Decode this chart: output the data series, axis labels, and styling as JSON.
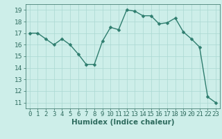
{
  "x": [
    0,
    1,
    2,
    3,
    4,
    5,
    6,
    7,
    8,
    9,
    10,
    11,
    12,
    13,
    14,
    15,
    16,
    17,
    18,
    19,
    20,
    21,
    22,
    23
  ],
  "y": [
    17.0,
    17.0,
    16.5,
    16.0,
    16.5,
    16.0,
    15.2,
    14.3,
    14.3,
    16.3,
    17.5,
    17.3,
    19.0,
    18.9,
    18.5,
    18.5,
    17.8,
    17.9,
    18.3,
    17.1,
    16.5,
    15.8,
    11.5,
    11.0
  ],
  "line_color": "#2e7d6e",
  "marker_color": "#2e7d6e",
  "bg_color": "#cdeee9",
  "grid_color": "#aad8d2",
  "xlabel": "Humidex (Indice chaleur)",
  "ylabel": "",
  "xlim": [
    -0.5,
    23.5
  ],
  "ylim": [
    10.5,
    19.5
  ],
  "yticks": [
    11,
    12,
    13,
    14,
    15,
    16,
    17,
    18,
    19
  ],
  "xticks": [
    0,
    1,
    2,
    3,
    4,
    5,
    6,
    7,
    8,
    9,
    10,
    11,
    12,
    13,
    14,
    15,
    16,
    17,
    18,
    19,
    20,
    21,
    22,
    23
  ],
  "tick_label_color": "#2e6b5e",
  "xlabel_color": "#2e6b5e",
  "xlabel_fontsize": 7.5,
  "tick_fontsize": 6.5,
  "linewidth": 1.0,
  "markersize": 2.5
}
